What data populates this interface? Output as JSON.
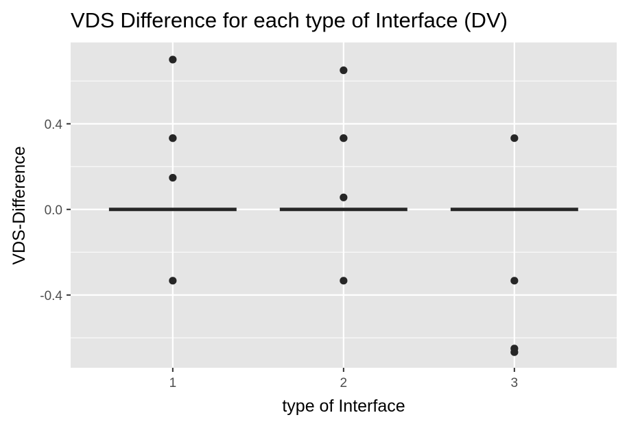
{
  "chart_data": {
    "type": "scatter",
    "title": "VDS Difference for each type of Interface (DV)",
    "xlabel": "type of Interface",
    "ylabel": "VDS-Difference",
    "categories": [
      "1",
      "2",
      "3"
    ],
    "ylim": [
      -0.74,
      0.78
    ],
    "yticks": [
      -0.4,
      0.0,
      0.4
    ],
    "ytick_labels": [
      "-0.4",
      "0.0",
      "0.4"
    ],
    "grid": true,
    "legend": "none",
    "background": "#e5e5e5",
    "grid_color": "#ffffff",
    "point_color": "#262626",
    "points": [
      {
        "x": "1",
        "y": 0.7
      },
      {
        "x": "1",
        "y": 0.333
      },
      {
        "x": "1",
        "y": 0.333
      },
      {
        "x": "1",
        "y": 0.148
      },
      {
        "x": "1",
        "y": -0.333
      },
      {
        "x": "2",
        "y": 0.65
      },
      {
        "x": "2",
        "y": 0.333
      },
      {
        "x": "2",
        "y": 0.333
      },
      {
        "x": "2",
        "y": 0.056
      },
      {
        "x": "2",
        "y": -0.333
      },
      {
        "x": "3",
        "y": 0.333
      },
      {
        "x": "3",
        "y": -0.333
      },
      {
        "x": "3",
        "y": -0.65
      },
      {
        "x": "3",
        "y": -0.667
      }
    ],
    "medians": [
      {
        "x": "1",
        "y": 0.0
      },
      {
        "x": "2",
        "y": 0.0
      },
      {
        "x": "3",
        "y": 0.0
      }
    ]
  }
}
